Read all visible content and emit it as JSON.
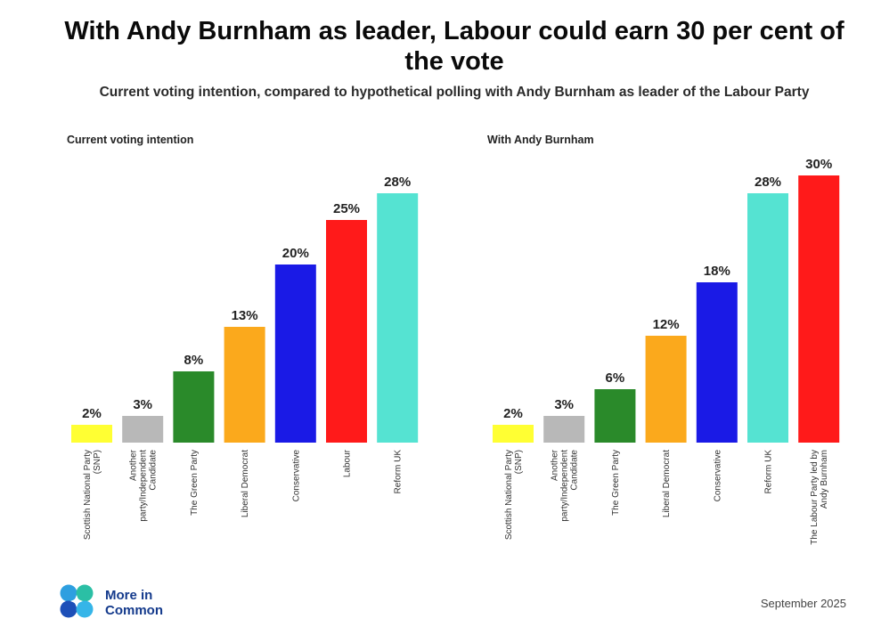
{
  "title": "With Andy Burnham as leader, Labour could earn 30 per cent of the vote",
  "subtitle": "Current voting intention, compared to hypothetical polling with Andy Burnham as leader of the Labour Party",
  "chart_data": [
    {
      "type": "bar",
      "title": "Current voting intention",
      "categories": [
        "Scottish National Party (SNP)",
        "Another party/Independent Candidate",
        "The Green Party",
        "Liberal Democrat",
        "Conservative",
        "Labour",
        "Reform UK"
      ],
      "values": [
        2,
        3,
        8,
        13,
        20,
        25,
        28
      ],
      "value_labels": [
        "2%",
        "3%",
        "8%",
        "13%",
        "20%",
        "25%",
        "28%"
      ],
      "colors": [
        "#ffff33",
        "#b8b8b8",
        "#2a8a2a",
        "#fba91c",
        "#1a1ae6",
        "#ff1a1a",
        "#55e3d2"
      ],
      "ylim": [
        0,
        30
      ],
      "unit": "%"
    },
    {
      "type": "bar",
      "title": "With Andy Burnham",
      "categories": [
        "Scottish National Party (SNP)",
        "Another party/Independent Candidate",
        "The Green Party",
        "Liberal Democrat",
        "Conservative",
        "Reform UK",
        "The Labour Party led by Andy Burnham"
      ],
      "values": [
        2,
        3,
        6,
        12,
        18,
        28,
        30
      ],
      "value_labels": [
        "2%",
        "3%",
        "6%",
        "12%",
        "18%",
        "28%",
        "30%"
      ],
      "colors": [
        "#ffff33",
        "#b8b8b8",
        "#2a8a2a",
        "#fba91c",
        "#1a1ae6",
        "#55e3d2",
        "#ff1a1a"
      ],
      "ylim": [
        0,
        30
      ],
      "unit": "%"
    }
  ],
  "footer": {
    "logo_text": "More in Common",
    "date": "September 2025"
  }
}
